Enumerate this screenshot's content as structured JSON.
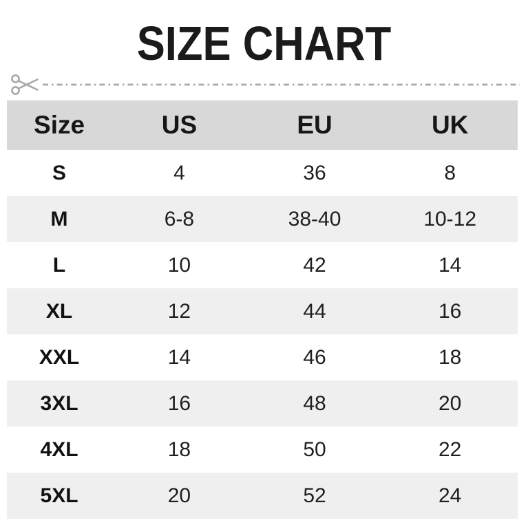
{
  "page": {
    "title": "SIZE CHART"
  },
  "cut_line": {
    "icon": "scissors-icon"
  },
  "table": {
    "headers": [
      "Size",
      "US",
      "EU",
      "UK"
    ],
    "rows": [
      {
        "size": "S",
        "us": "4",
        "eu": "36",
        "uk": "8"
      },
      {
        "size": "M",
        "us": "6-8",
        "eu": "38-40",
        "uk": "10-12"
      },
      {
        "size": "L",
        "us": "10",
        "eu": "42",
        "uk": "14"
      },
      {
        "size": "XL",
        "us": "12",
        "eu": "44",
        "uk": "16"
      },
      {
        "size": "XXL",
        "us": "14",
        "eu": "46",
        "uk": "18"
      },
      {
        "size": "3XL",
        "us": "16",
        "eu": "48",
        "uk": "20"
      },
      {
        "size": "4XL",
        "us": "18",
        "eu": "50",
        "uk": "22"
      },
      {
        "size": "5XL",
        "us": "20",
        "eu": "52",
        "uk": "24"
      }
    ]
  },
  "colors": {
    "header_row_bg": "#d8d8d8",
    "alt_row_bg": "#efefef",
    "title_text": "#1b1b1b",
    "cut_line": "#a8a8a8"
  },
  "chart_data": {
    "type": "table",
    "title": "SIZE CHART",
    "columns": [
      "Size",
      "US",
      "EU",
      "UK"
    ],
    "rows": [
      [
        "S",
        "4",
        "36",
        "8"
      ],
      [
        "M",
        "6-8",
        "38-40",
        "10-12"
      ],
      [
        "L",
        "10",
        "42",
        "14"
      ],
      [
        "XL",
        "12",
        "44",
        "16"
      ],
      [
        "XXL",
        "14",
        "46",
        "18"
      ],
      [
        "3XL",
        "16",
        "48",
        "20"
      ],
      [
        "4XL",
        "18",
        "50",
        "22"
      ],
      [
        "5XL",
        "20",
        "52",
        "24"
      ]
    ]
  }
}
